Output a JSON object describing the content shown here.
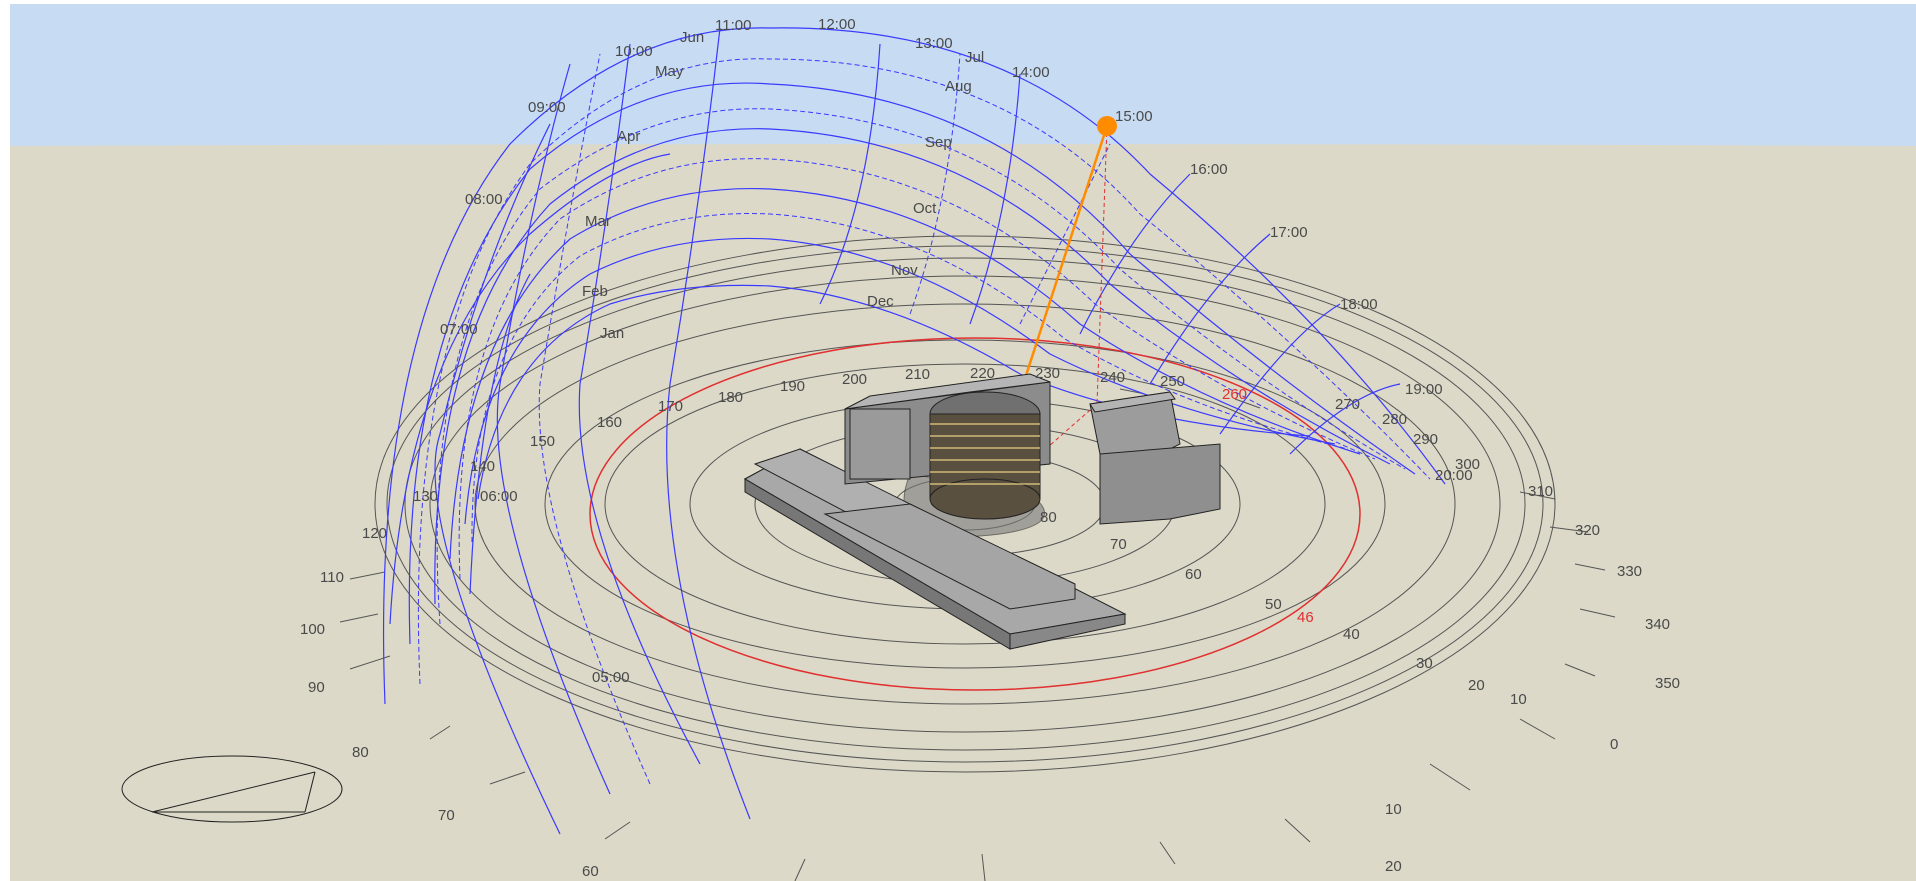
{
  "hour_labels": [
    "05:00",
    "06:00",
    "07:00",
    "08:00",
    "09:00",
    "10:00",
    "11:00",
    "12:00",
    "13:00",
    "14:00",
    "15:00",
    "16:00",
    "17:00",
    "18:00",
    "19:00",
    "20:00"
  ],
  "month_labels": [
    "Jan",
    "Feb",
    "Mar",
    "Apr",
    "May",
    "Jun",
    "Jul",
    "Aug",
    "Sep",
    "Oct",
    "Nov",
    "Dec"
  ],
  "azimuth_labels": [
    "20",
    "10",
    "0",
    "350",
    "340",
    "330",
    "320",
    "310",
    "300",
    "290",
    "280",
    "270",
    "260",
    "250",
    "240",
    "230",
    "220",
    "210",
    "200",
    "190",
    "180",
    "170",
    "160",
    "150",
    "140",
    "130",
    "120",
    "110",
    "100",
    "90",
    "80",
    "70",
    "60"
  ],
  "altitude_labels": [
    "80",
    "70",
    "60",
    "50",
    "46",
    "40",
    "30",
    "20",
    "10"
  ],
  "sun": {
    "time": "15:00",
    "azimuth": "260",
    "altitude": "46"
  },
  "colors": {
    "sky": "#c7dbf2",
    "ground": "#dcd9c8",
    "sunpath": "#3a3aff",
    "sun": "#ff8c00",
    "highlight": "#e03030",
    "ring": "#555555",
    "building": "#9a9a9a"
  }
}
